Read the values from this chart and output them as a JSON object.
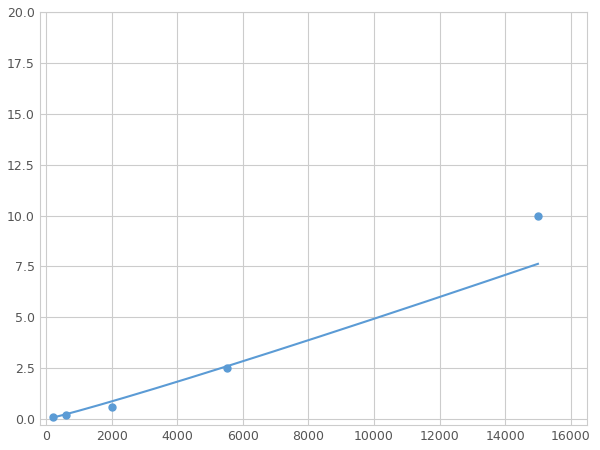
{
  "x": [
    200,
    600,
    2000,
    5500,
    15000
  ],
  "y": [
    0.1,
    0.2,
    0.6,
    2.5,
    10.0
  ],
  "line_color": "#5b9bd5",
  "marker_color": "#5b9bd5",
  "marker_size": 5,
  "xlim": [
    -200,
    16500
  ],
  "ylim": [
    -0.3,
    20.0
  ],
  "xticks": [
    0,
    2000,
    4000,
    6000,
    8000,
    10000,
    12000,
    14000,
    16000
  ],
  "yticks": [
    0.0,
    2.5,
    5.0,
    7.5,
    10.0,
    12.5,
    15.0,
    17.5,
    20.0
  ],
  "grid": true,
  "background_color": "#ffffff",
  "figure_width": 6.0,
  "figure_height": 4.5,
  "dpi": 100
}
